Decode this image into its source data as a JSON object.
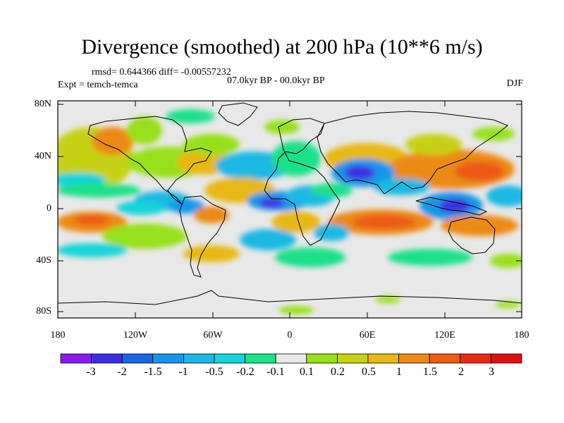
{
  "title": "Divergence (smoothed) at 200 hPa (10**6 m/s)",
  "stats": "rmsd= 0.644366 diff= -0.00557232",
  "experiment": "Expt = temch-temca",
  "period": "07.0kyr BP - 00.0kyr BP",
  "season": "DJF",
  "axes": {
    "lat_labels": [
      "80N",
      "40N",
      "0",
      "40S",
      "80S"
    ],
    "lon_labels": [
      "180",
      "120W",
      "60W",
      "0",
      "60E",
      "120E",
      "180"
    ]
  },
  "colorbar": {
    "labels": [
      "-3",
      "-2",
      "-1.5",
      "-1",
      "-0.5",
      "-0.2",
      "-0.1",
      "0.1",
      "0.2",
      "0.5",
      "1",
      "1.5",
      "2",
      "3"
    ],
    "colors": [
      "#8a1cf0",
      "#3c2ee0",
      "#1b66e6",
      "#1596e8",
      "#1ab8e3",
      "#16d3d8",
      "#1ee08a",
      "#e8e8e8",
      "#98e01a",
      "#c8d016",
      "#e8b818",
      "#ec8a16",
      "#ec5a14",
      "#e82a14",
      "#dc1010"
    ]
  }
}
